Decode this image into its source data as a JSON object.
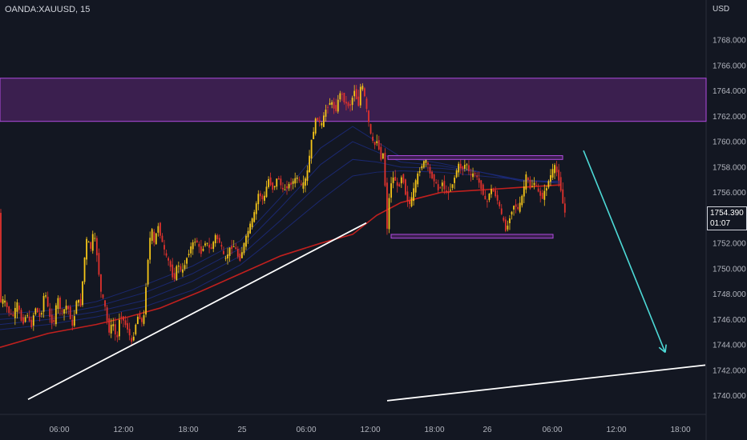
{
  "header": {
    "symbol": "OANDA:XAUUSD, 15",
    "currency": "USD"
  },
  "last_price": {
    "value": "1754.390",
    "countdown": "01:07"
  },
  "colors": {
    "background": "#131722",
    "bull_candle": "#f5c518",
    "bear_candle": "#e0322d",
    "zone_fill": "#3b1f4f",
    "zone_border": "#b04be0",
    "ema_slow": "#c0201e",
    "ema_fast": "#1c2a78",
    "trendline": "#ffffff",
    "forecast_arrow": "#4dd9d6"
  },
  "chart_data": {
    "type": "candlestick",
    "symbol": "OANDA:XAUUSD",
    "timeframe": "15",
    "price_axis": {
      "ylim": [
        1738.4,
        1770.0
      ],
      "ticks": [
        "1740.000",
        "1742.000",
        "1744.000",
        "1746.000",
        "1748.000",
        "1750.000",
        "1752.000",
        "1754.000",
        "1756.000",
        "1758.000",
        "1760.000",
        "1762.000",
        "1764.000",
        "1766.000",
        "1768.000"
      ]
    },
    "time_axis": {
      "ticks": [
        "06:00",
        "12:00",
        "18:00",
        "25",
        "06:00",
        "12:00",
        "18:00",
        "26",
        "06:00",
        "12:00",
        "18:00"
      ]
    },
    "price_path": [
      [
        0,
        1747.2
      ],
      [
        6,
        1747.6
      ],
      [
        12,
        1746.6
      ],
      [
        17,
        1746.2
      ],
      [
        23,
        1747.3
      ],
      [
        29,
        1745.6
      ],
      [
        35,
        1746.5
      ],
      [
        40,
        1745.3
      ],
      [
        45,
        1747.0
      ],
      [
        52,
        1746.0
      ],
      [
        57,
        1748.4
      ],
      [
        63,
        1746.2
      ],
      [
        68,
        1745.6
      ],
      [
        73,
        1747.8
      ],
      [
        78,
        1746.4
      ],
      [
        85,
        1747.2
      ],
      [
        92,
        1745.3
      ],
      [
        97,
        1747.7
      ],
      [
        102,
        1747.1
      ],
      [
        106,
        1750.4
      ],
      [
        110,
        1752.6
      ],
      [
        114,
        1751.4
      ],
      [
        118,
        1753.0
      ],
      [
        122,
        1751.2
      ],
      [
        127,
        1748.2
      ],
      [
        132,
        1747.1
      ],
      [
        137,
        1745.0
      ],
      [
        142,
        1745.8
      ],
      [
        147,
        1744.2
      ],
      [
        151,
        1746.5
      ],
      [
        156,
        1745.8
      ],
      [
        161,
        1745.2
      ],
      [
        166,
        1744.0
      ],
      [
        170,
        1745.5
      ],
      [
        174,
        1746.4
      ],
      [
        180,
        1745.5
      ],
      [
        185,
        1750.2
      ],
      [
        190,
        1753.4
      ],
      [
        194,
        1751.8
      ],
      [
        198,
        1753.6
      ],
      [
        203,
        1752.2
      ],
      [
        208,
        1751.0
      ],
      [
        213,
        1750.4
      ],
      [
        218,
        1749.0
      ],
      [
        223,
        1750.5
      ],
      [
        228,
        1749.6
      ],
      [
        234,
        1750.8
      ],
      [
        240,
        1751.8
      ],
      [
        246,
        1752.3
      ],
      [
        252,
        1751.2
      ],
      [
        258,
        1752.2
      ],
      [
        264,
        1751.4
      ],
      [
        270,
        1752.6
      ],
      [
        276,
        1752.0
      ],
      [
        282,
        1750.6
      ],
      [
        288,
        1751.6
      ],
      [
        294,
        1751.8
      ],
      [
        300,
        1750.6
      ],
      [
        306,
        1752.0
      ],
      [
        312,
        1753.2
      ],
      [
        318,
        1754.2
      ],
      [
        324,
        1756.0
      ],
      [
        330,
        1755.3
      ],
      [
        336,
        1757.1
      ],
      [
        342,
        1756.2
      ],
      [
        348,
        1757.3
      ],
      [
        354,
        1756.1
      ],
      [
        360,
        1756.5
      ],
      [
        366,
        1756.8
      ],
      [
        372,
        1757.2
      ],
      [
        378,
        1756.4
      ],
      [
        384,
        1757.3
      ],
      [
        390,
        1760.1
      ],
      [
        396,
        1762.0
      ],
      [
        402,
        1761.2
      ],
      [
        408,
        1762.6
      ],
      [
        414,
        1763.2
      ],
      [
        420,
        1762.4
      ],
      [
        426,
        1764.0
      ],
      [
        432,
        1763.0
      ],
      [
        438,
        1762.8
      ],
      [
        444,
        1764.2
      ],
      [
        448,
        1762.6
      ],
      [
        452,
        1764.8
      ],
      [
        456,
        1763.6
      ],
      [
        460,
        1762.0
      ],
      [
        464,
        1760.5
      ],
      [
        468,
        1759.6
      ],
      [
        472,
        1760.2
      ],
      [
        476,
        1758.6
      ],
      [
        480,
        1759.2
      ],
      [
        484,
        1753.0
      ],
      [
        488,
        1756.6
      ],
      [
        493,
        1757.3
      ],
      [
        498,
        1756.2
      ],
      [
        503,
        1757.5
      ],
      [
        508,
        1755.6
      ],
      [
        513,
        1755.0
      ],
      [
        518,
        1756.4
      ],
      [
        523,
        1757.5
      ],
      [
        528,
        1758.2
      ],
      [
        533,
        1758.6
      ],
      [
        538,
        1757.4
      ],
      [
        543,
        1757.0
      ],
      [
        548,
        1756.2
      ],
      [
        553,
        1756.8
      ],
      [
        558,
        1755.9
      ],
      [
        563,
        1756.2
      ],
      [
        568,
        1757.1
      ],
      [
        573,
        1758.2
      ],
      [
        578,
        1757.8
      ],
      [
        583,
        1758.4
      ],
      [
        588,
        1757.2
      ],
      [
        593,
        1757.6
      ],
      [
        598,
        1756.9
      ],
      [
        603,
        1756.2
      ],
      [
        608,
        1755.0
      ],
      [
        613,
        1756.3
      ],
      [
        618,
        1756.0
      ],
      [
        623,
        1755.2
      ],
      [
        628,
        1754.0
      ],
      [
        633,
        1752.9
      ],
      [
        638,
        1754.3
      ],
      [
        643,
        1755.1
      ],
      [
        648,
        1754.6
      ],
      [
        653,
        1755.8
      ],
      [
        658,
        1757.4
      ],
      [
        663,
        1756.3
      ],
      [
        668,
        1756.8
      ],
      [
        673,
        1756.0
      ],
      [
        678,
        1755.6
      ],
      [
        683,
        1756.4
      ],
      [
        688,
        1757.3
      ],
      [
        693,
        1758.1
      ],
      [
        698,
        1757.2
      ],
      [
        702,
        1755.9
      ],
      [
        705,
        1754.4
      ]
    ],
    "ema_slow": [
      [
        0,
        1743.8
      ],
      [
        60,
        1744.9
      ],
      [
        120,
        1745.6
      ],
      [
        160,
        1746.2
      ],
      [
        200,
        1746.9
      ],
      [
        250,
        1748.2
      ],
      [
        300,
        1749.6
      ],
      [
        350,
        1751.0
      ],
      [
        400,
        1752.0
      ],
      [
        440,
        1752.7
      ],
      [
        470,
        1754.2
      ],
      [
        500,
        1755.2
      ],
      [
        550,
        1756.0
      ],
      [
        600,
        1756.2
      ],
      [
        650,
        1756.4
      ],
      [
        700,
        1756.6
      ]
    ],
    "ema_ribbon": [
      [
        [
          0,
          1745.2
        ],
        [
          60,
          1745.6
        ],
        [
          120,
          1746.2
        ],
        [
          180,
          1747.0
        ],
        [
          240,
          1748.3
        ],
        [
          300,
          1750.3
        ],
        [
          350,
          1752.8
        ],
        [
          400,
          1755.4
        ],
        [
          440,
          1757.3
        ],
        [
          470,
          1757.6
        ],
        [
          500,
          1757.7
        ],
        [
          550,
          1757.6
        ],
        [
          600,
          1757.3
        ],
        [
          650,
          1757.0
        ],
        [
          700,
          1756.7
        ]
      ],
      [
        [
          0,
          1745.6
        ],
        [
          60,
          1746.0
        ],
        [
          120,
          1746.6
        ],
        [
          180,
          1747.5
        ],
        [
          240,
          1749.0
        ],
        [
          300,
          1751.0
        ],
        [
          350,
          1753.8
        ],
        [
          400,
          1756.8
        ],
        [
          440,
          1758.6
        ],
        [
          470,
          1758.4
        ],
        [
          500,
          1758.0
        ],
        [
          550,
          1757.9
        ],
        [
          600,
          1757.6
        ],
        [
          650,
          1757.0
        ],
        [
          700,
          1756.8
        ]
      ],
      [
        [
          0,
          1746.0
        ],
        [
          60,
          1746.3
        ],
        [
          120,
          1747.0
        ],
        [
          180,
          1748.1
        ],
        [
          240,
          1749.6
        ],
        [
          300,
          1751.6
        ],
        [
          350,
          1754.8
        ],
        [
          400,
          1758.2
        ],
        [
          440,
          1760.0
        ],
        [
          470,
          1759.2
        ],
        [
          500,
          1758.4
        ],
        [
          550,
          1758.1
        ],
        [
          600,
          1757.6
        ],
        [
          650,
          1756.9
        ],
        [
          700,
          1756.8
        ]
      ],
      [
        [
          0,
          1746.4
        ],
        [
          60,
          1746.7
        ],
        [
          120,
          1747.4
        ],
        [
          180,
          1748.7
        ],
        [
          240,
          1750.2
        ],
        [
          300,
          1752.2
        ],
        [
          350,
          1755.6
        ],
        [
          400,
          1759.5
        ],
        [
          440,
          1761.2
        ],
        [
          470,
          1760.0
        ],
        [
          500,
          1758.8
        ],
        [
          550,
          1758.3
        ],
        [
          600,
          1757.6
        ],
        [
          650,
          1756.9
        ],
        [
          700,
          1756.9
        ]
      ]
    ],
    "annotations": {
      "resistance_zone": {
        "y_range": [
          1761.6,
          1765.0
        ]
      },
      "range_top": {
        "x_range": [
          484,
          702
        ],
        "y_range": [
          1758.6,
          1758.9
        ]
      },
      "range_bottom": {
        "x_range": [
          488,
          690
        ],
        "y_range": [
          1752.4,
          1752.7
        ]
      },
      "trendline_up": {
        "from": [
          35,
          1739.7
        ],
        "to": [
          457,
          1753.6
        ]
      },
      "trendline_lower": {
        "from": [
          483,
          1739.6
        ],
        "to": [
          880,
          1742.4
        ]
      },
      "forecast_arrow": {
        "from": [
          728,
          1759.3
        ],
        "to": [
          830,
          1743.4
        ]
      }
    }
  }
}
